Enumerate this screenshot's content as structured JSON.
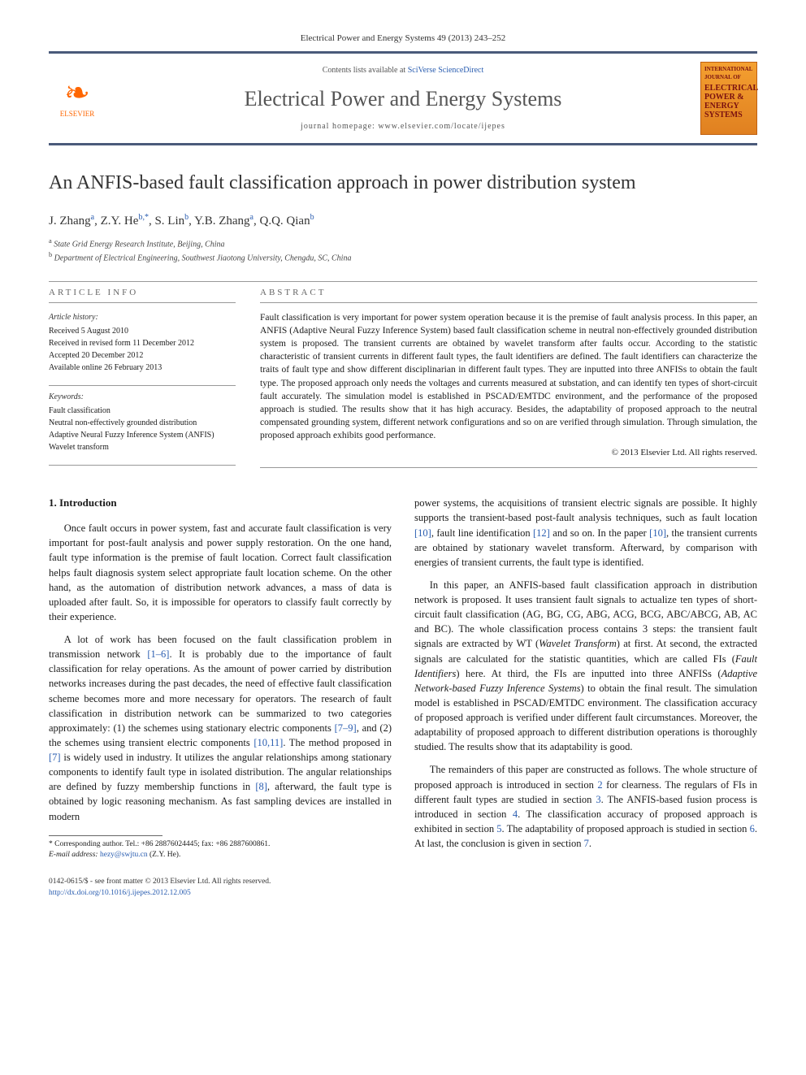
{
  "journal_ref": "Electrical Power and Energy Systems 49 (2013) 243–252",
  "header": {
    "contents_prefix": "Contents lists available at ",
    "contents_link": "SciVerse ScienceDirect",
    "journal_name": "Electrical Power and Energy Systems",
    "homepage_label": "journal homepage: www.elsevier.com/locate/ijepes",
    "publisher_name": "ELSEVIER",
    "cover_small": "INTERNATIONAL JOURNAL OF",
    "cover_big": "ELECTRICAL POWER & ENERGY SYSTEMS"
  },
  "title": "An ANFIS-based fault classification approach in power distribution system",
  "authors_html": "J. Zhang<sup class='affmark'>a</sup>, Z.Y. He<sup class='affmark'>b,</sup><sup>*</sup>, S. Lin<sup class='affmark'>b</sup>, Y.B. Zhang<sup class='affmark'>a</sup>, Q.Q. Qian<sup class='affmark'>b</sup>",
  "affiliations": [
    "a State Grid Energy Research Institute, Beijing, China",
    "b Department of Electrical Engineering, Southwest Jiaotong University, Chengdu, SC, China"
  ],
  "article_info": {
    "heading": "ARTICLE INFO",
    "history_head": "Article history:",
    "history": [
      "Received 5 August 2010",
      "Received in revised form 11 December 2012",
      "Accepted 20 December 2012",
      "Available online 26 February 2013"
    ],
    "keywords_head": "Keywords:",
    "keywords": [
      "Fault classification",
      "Neutral non-effectively grounded distribution",
      "Adaptive Neural Fuzzy Inference System (ANFIS)",
      "Wavelet transform"
    ]
  },
  "abstract": {
    "heading": "ABSTRACT",
    "text": "Fault classification is very important for power system operation because it is the premise of fault analysis process. In this paper, an ANFIS (Adaptive Neural Fuzzy Inference System) based fault classification scheme in neutral non-effectively grounded distribution system is proposed. The transient currents are obtained by wavelet transform after faults occur. According to the statistic characteristic of transient currents in different fault types, the fault identifiers are defined. The fault identifiers can characterize the traits of fault type and show different disciplinarian in different fault types. They are inputted into three ANFISs to obtain the fault type. The proposed approach only needs the voltages and currents measured at substation, and can identify ten types of short-circuit fault accurately. The simulation model is established in PSCAD/EMTDC environment, and the performance of the proposed approach is studied. The results show that it has high accuracy. Besides, the adaptability of proposed approach to the neutral compensated grounding system, different network configurations and so on are verified through simulation. Through simulation, the proposed approach exhibits good performance.",
    "copyright": "© 2013 Elsevier Ltd. All rights reserved."
  },
  "body": {
    "section1_heading": "1. Introduction",
    "p1": "Once fault occurs in power system, fast and accurate fault classification is very important for post-fault analysis and power supply restoration. On the one hand, fault type information is the premise of fault location. Correct fault classification helps fault diagnosis system select appropriate fault location scheme. On the other hand, as the automation of distribution network advances, a mass of data is uploaded after fault. So, it is impossible for operators to classify fault correctly by their experience.",
    "p2": "A lot of work has been focused on the fault classification problem in transmission network [1–6]. It is probably due to the importance of fault classification for relay operations. As the amount of power carried by distribution networks increases during the past decades, the need of effective fault classification scheme becomes more and more necessary for operators. The research of fault classification in distribution network can be summarized to two categories approximately: (1) the schemes using stationary electric components [7–9], and (2) the schemes using transient electric components [10,11]. The method proposed in [7] is widely used in industry. It utilizes the angular relationships among stationary components to identify fault type in isolated distribution. The angular relationships are defined by fuzzy membership functions in [8], afterward, the fault type is obtained by logic reasoning mechanism. As fast sampling devices are installed in modern",
    "p3": "power systems, the acquisitions of transient electric signals are possible. It highly supports the transient-based post-fault analysis techniques, such as fault location [10], fault line identification [12] and so on. In the paper [10], the transient currents are obtained by stationary wavelet transform. Afterward, by comparison with energies of transient currents, the fault type is identified.",
    "p4": "In this paper, an ANFIS-based fault classification approach in distribution network is proposed. It uses transient fault signals to actualize ten types of short-circuit fault classification (AG, BG, CG, ABG, ACG, BCG, ABC/ABCG, AB, AC and BC). The whole classification process contains 3 steps: the transient fault signals are extracted by WT (Wavelet Transform) at first. At second, the extracted signals are calculated for the statistic quantities, which are called FIs (Fault Identifiers) here. At third, the FIs are inputted into three ANFISs (Adaptive Network-based Fuzzy Inference Systems) to obtain the final result. The simulation model is established in PSCAD/EMTDC environment. The classification accuracy of proposed approach is verified under different fault circumstances. Moreover, the adaptability of proposed approach to different distribution operations is thoroughly studied. The results show that its adaptability is good.",
    "p5": "The remainders of this paper are constructed as follows. The whole structure of proposed approach is introduced in section 2 for clearness. The regulars of FIs in different fault types are studied in section 3. The ANFIS-based fusion process is introduced in section 4. The classification accuracy of proposed approach is exhibited in section 5. The adaptability of proposed approach is studied in section 6. At last, the conclusion is given in section 7."
  },
  "footnote": {
    "corr": "* Corresponding author. Tel.: +86 28876024445; fax: +86 2887600861.",
    "email_label": "E-mail address:",
    "email": "hezy@swjtu.cn",
    "email_who": "(Z.Y. He)."
  },
  "footer": {
    "left1": "0142-0615/$ - see front matter © 2013 Elsevier Ltd. All rights reserved.",
    "left2": "http://dx.doi.org/10.1016/j.ijepes.2012.12.005"
  },
  "colors": {
    "link": "#2a5db0",
    "rule": "#4a5a7a",
    "cover_bg_top": "#f4a030",
    "cover_bg_bot": "#e08020",
    "elsevier": "#ff6600"
  }
}
